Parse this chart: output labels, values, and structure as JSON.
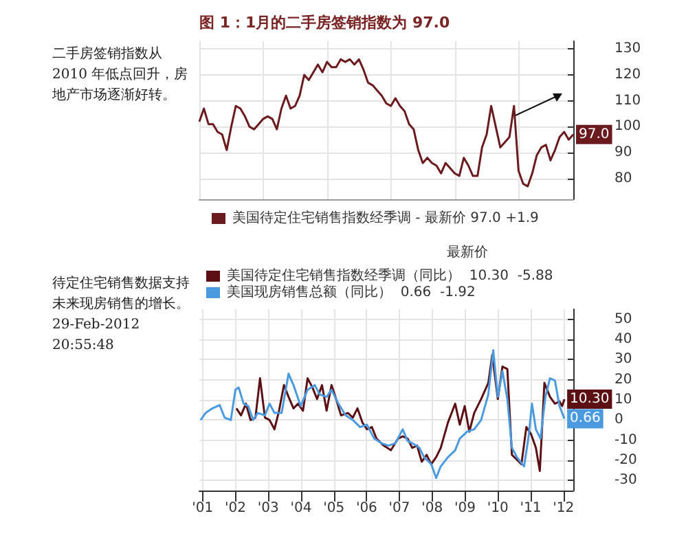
{
  "chart_data": [
    {
      "type": "line",
      "title": "图 1：1月的二手房签销指数为 97.0",
      "annotations": [
        "二手房签销指数从 2010 年低点回升，房地产市场逐渐好转。"
      ],
      "categories": [
        null,
        null,
        null,
        null,
        null,
        null,
        null,
        null,
        null,
        null,
        null,
        null,
        null,
        null,
        null,
        null,
        null,
        null,
        null,
        null,
        null,
        null,
        null,
        null,
        null,
        null,
        null,
        null,
        null,
        null,
        null,
        null,
        null,
        null,
        null,
        null,
        null,
        null,
        null,
        null,
        null,
        null,
        null,
        null,
        null,
        null,
        null,
        null,
        null,
        null,
        null,
        null,
        null,
        null,
        null,
        null,
        null,
        null,
        null,
        null,
        null,
        null,
        null,
        null,
        null,
        null,
        null,
        null,
        null,
        null,
        null,
        null,
        null,
        null,
        null,
        null,
        null,
        null,
        null,
        null,
        null,
        null,
        null
      ],
      "series": [
        {
          "name": "美国待定住宅销售指数经季调 - 最新价 97.0 +1.9",
          "color": "#6b1a1e",
          "values": [
            102,
            107,
            101,
            101,
            98,
            97,
            91,
            100,
            108,
            107,
            104,
            100,
            99,
            101,
            103,
            104,
            103,
            99,
            107,
            112,
            107,
            108,
            112,
            120,
            118,
            121,
            124,
            121,
            125,
            123,
            123,
            126,
            125,
            126,
            124,
            126,
            122,
            117,
            116,
            114,
            112,
            109,
            108,
            111,
            108,
            106,
            101,
            99,
            91,
            86,
            88,
            86,
            85,
            82,
            86,
            84,
            82,
            81,
            88,
            85,
            81,
            81,
            92,
            97,
            108,
            100,
            92,
            94,
            96,
            108,
            83,
            78,
            77,
            82,
            89,
            92,
            93,
            87,
            91,
            96,
            98,
            95,
            97
          ],
          "value_labels": [
            null,
            null,
            null,
            null,
            null,
            null,
            null,
            null,
            null,
            null,
            null,
            null,
            null,
            null,
            null,
            null,
            null,
            null,
            null,
            null,
            null,
            null,
            null,
            null,
            null,
            null,
            null,
            null,
            null,
            null,
            null,
            null,
            null,
            null,
            null,
            null,
            null,
            null,
            null,
            null,
            null,
            null,
            null,
            null,
            null,
            null,
            null,
            null,
            null,
            null,
            null,
            null,
            null,
            null,
            null,
            null,
            null,
            null,
            null,
            null,
            null,
            null,
            null,
            null,
            null,
            null,
            null,
            null,
            null,
            null,
            null,
            null,
            null,
            null,
            null,
            null,
            null,
            null,
            null,
            null,
            null,
            null,
            "97.0"
          ]
        }
      ],
      "ylim": [
        72,
        133
      ],
      "yticks": [
        80,
        90,
        100,
        110,
        120,
        130
      ],
      "grid": true,
      "legend": "bottom left",
      "marker": "none"
    },
    {
      "type": "line",
      "annotations": [
        "待定住宅销售数据支持",
        "未来现房销售的增长。",
        "29-Feb-2012 20:55:48"
      ],
      "legend_title": "最新价",
      "xlim": [
        2000.9,
        2012.3
      ],
      "xticks": [
        {
          "value": 2001,
          "label": "'01"
        },
        {
          "value": 2002,
          "label": "'02"
        },
        {
          "value": 2003,
          "label": "'03"
        },
        {
          "value": 2004,
          "label": "'04"
        },
        {
          "value": 2005,
          "label": "'05"
        },
        {
          "value": 2006,
          "label": "'06"
        },
        {
          "value": 2007,
          "label": "'07"
        },
        {
          "value": 2008,
          "label": "'08"
        },
        {
          "value": 2009,
          "label": "'09"
        },
        {
          "value": 2010,
          "label": "'10"
        },
        {
          "value": 2011,
          "label": "'11"
        },
        {
          "value": 2012,
          "label": "'12"
        }
      ],
      "ylim": [
        -35,
        55
      ],
      "yticks": [
        -30,
        -20,
        -10,
        0,
        10,
        20,
        30,
        40,
        50
      ],
      "grid": true,
      "legend": "top",
      "marker": "none",
      "series": [
        {
          "name": "美国待定住宅销售指数经季调（同比）  10.30  -5.88",
          "color": "#5c1014",
          "x": [
            2002.03,
            2002.17,
            2002.32,
            2002.46,
            2002.61,
            2002.75,
            2002.9,
            2003.04,
            2003.19,
            2003.33,
            2003.48,
            2003.62,
            2003.77,
            2003.91,
            2004.06,
            2004.2,
            2004.35,
            2004.49,
            2004.64,
            2004.78,
            2004.93,
            2005.07,
            2005.22,
            2005.43,
            2005.58,
            2005.72,
            2005.87,
            2006.01,
            2006.16,
            2006.3,
            2006.52,
            2006.74,
            2006.96,
            2007.1,
            2007.25,
            2007.39,
            2007.54,
            2007.68,
            2007.83,
            2007.97,
            2008.12,
            2008.26,
            2008.48,
            2008.7,
            2008.84,
            2008.99,
            2009.13,
            2009.28,
            2009.49,
            2009.71,
            2009.83,
            2010,
            2010.14,
            2010.29,
            2010.43,
            2010.58,
            2010.72,
            2010.87,
            2011.01,
            2011.16,
            2011.28,
            2011.42,
            2011.59,
            2011.74,
            2011.88,
            2011.96,
            2012.03
          ],
          "values": [
            5.8,
            2.3,
            8.1,
            0,
            1.2,
            20.7,
            1.2,
            0,
            -4.6,
            4.6,
            17.3,
            11.5,
            5.8,
            8.1,
            4.6,
            20.7,
            16.1,
            10.4,
            17.3,
            4.6,
            17.3,
            10.4,
            2.3,
            3.5,
            1.2,
            5.8,
            -1.2,
            -4.6,
            -3.5,
            -9.2,
            -12.7,
            -15,
            -9.2,
            -8.1,
            -9.2,
            -13.8,
            -12.7,
            -20.7,
            -17.3,
            -21.9,
            -18.4,
            -13.8,
            -1.2,
            8.1,
            -2.3,
            6.9,
            -5.8,
            3.5,
            10.4,
            18.4,
            32.3,
            10.4,
            26.5,
            25.3,
            -17.3,
            -19.6,
            -21.9,
            -3.5,
            -6.9,
            -13.8,
            -25.3,
            18.4,
            11.5,
            8.1,
            9.2,
            6.9,
            10.3
          ],
          "value_labels": [
            null,
            null,
            null,
            null,
            null,
            null,
            null,
            null,
            null,
            null,
            null,
            null,
            null,
            null,
            null,
            null,
            null,
            null,
            null,
            null,
            null,
            null,
            null,
            null,
            null,
            null,
            null,
            null,
            null,
            null,
            null,
            null,
            null,
            null,
            null,
            null,
            null,
            null,
            null,
            null,
            null,
            null,
            null,
            null,
            null,
            null,
            null,
            null,
            null,
            null,
            null,
            null,
            null,
            null,
            null,
            null,
            null,
            null,
            null,
            null,
            null,
            null,
            null,
            null,
            null,
            null,
            "10.30"
          ]
        },
        {
          "name": "美国现房销售总额（同比）  0.66  -1.92",
          "color": "#4a9ae0",
          "x": [
            2000.94,
            2001.09,
            2001.3,
            2001.52,
            2001.67,
            2001.86,
            2002,
            2002.1,
            2002.25,
            2002.39,
            2002.54,
            2002.68,
            2002.9,
            2003.04,
            2003.19,
            2003.41,
            2003.62,
            2003.77,
            2003.99,
            2004.2,
            2004.42,
            2004.57,
            2004.78,
            2004.93,
            2005.14,
            2005.36,
            2005.58,
            2005.8,
            2006.01,
            2006.23,
            2006.45,
            2006.67,
            2006.88,
            2007.1,
            2007.25,
            2007.39,
            2007.61,
            2007.75,
            2007.97,
            2008.12,
            2008.26,
            2008.48,
            2008.7,
            2008.84,
            2009.06,
            2009.28,
            2009.49,
            2009.71,
            2009.86,
            2010,
            2010.14,
            2010.29,
            2010.43,
            2010.58,
            2010.8,
            2010.94,
            2011.04,
            2011.16,
            2011.3,
            2011.45,
            2011.59,
            2011.74,
            2011.88,
            2012.03
          ],
          "values": [
            0,
            3.5,
            5.8,
            7.4,
            1.2,
            0,
            15,
            16.1,
            8.1,
            6.9,
            0,
            3.5,
            2.3,
            8.1,
            3.5,
            3.5,
            23,
            17.3,
            6.9,
            15,
            17.3,
            12.7,
            11.5,
            15,
            8.1,
            2.3,
            0,
            -3.5,
            -2.3,
            -9.2,
            -11.5,
            -12.7,
            -11.5,
            -4.6,
            -10.4,
            -11.5,
            -13.8,
            -18.4,
            -21.9,
            -28.8,
            -23,
            -18.4,
            -15,
            -9.2,
            -5.8,
            -4.6,
            0,
            12.7,
            34.6,
            11.5,
            24.2,
            10.4,
            -13.8,
            -18.4,
            -23,
            -8.1,
            8.1,
            -4.6,
            -9.2,
            11.5,
            20.7,
            19.6,
            6.9,
            0.66
          ],
          "value_labels": [
            null,
            null,
            null,
            null,
            null,
            null,
            null,
            null,
            null,
            null,
            null,
            null,
            null,
            null,
            null,
            null,
            null,
            null,
            null,
            null,
            null,
            null,
            null,
            null,
            null,
            null,
            null,
            null,
            null,
            null,
            null,
            null,
            null,
            null,
            null,
            null,
            null,
            null,
            null,
            null,
            null,
            null,
            null,
            null,
            null,
            null,
            null,
            null,
            null,
            null,
            null,
            null,
            null,
            null,
            null,
            null,
            null,
            null,
            null,
            null,
            null,
            null,
            null,
            "0.66"
          ]
        }
      ]
    }
  ]
}
